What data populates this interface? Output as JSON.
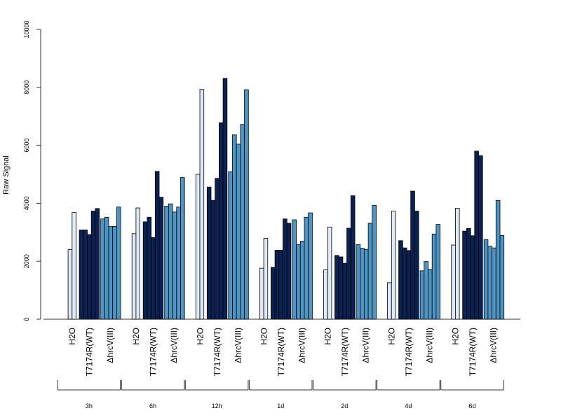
{
  "chart_data": {
    "type": "bar",
    "ylabel": "Raw Signal",
    "ylim": [
      0,
      10000
    ],
    "y_ticks": [
      "0",
      "2000",
      "4000",
      "6000",
      "8000",
      "10000"
    ],
    "group_labels": [
      "H2O",
      "T7174R(WT)",
      "ΔhrcV(III)"
    ],
    "colors": {
      "H2O": "#dfe9f5",
      "T7174R(WT)": "#0b2152",
      "ΔhrcV(III)": "#4e95c6",
      "axis": "#333333"
    },
    "categories": [
      "3h",
      "6h",
      "12h",
      "1d",
      "2d",
      "4d",
      "6d"
    ],
    "panels": [
      {
        "time": "3h",
        "groups": [
          [
            2400,
            3680
          ],
          [
            3080,
            3080,
            2920,
            3730,
            3820
          ],
          [
            3460,
            3520,
            3200,
            3200,
            3870
          ]
        ]
      },
      {
        "time": "6h",
        "groups": [
          [
            2950,
            3840
          ],
          [
            3360,
            3520,
            2820,
            5100,
            4210
          ],
          [
            3900,
            3980,
            3700,
            3870,
            4890
          ]
        ]
      },
      {
        "time": "12h",
        "groups": [
          [
            5000,
            7930
          ],
          [
            4560,
            4100,
            4860,
            6780,
            8310
          ],
          [
            5090,
            6360,
            6040,
            6720,
            7920
          ]
        ]
      },
      {
        "time": "1d",
        "groups": [
          [
            1760,
            2790
          ],
          [
            1790,
            2380,
            2380,
            3460,
            3310
          ],
          [
            3430,
            2580,
            2690,
            3520,
            3670
          ]
        ]
      },
      {
        "time": "2d",
        "groups": [
          [
            1710,
            3180
          ],
          [
            2200,
            2150,
            1930,
            3140,
            4260
          ],
          [
            2580,
            2450,
            2410,
            3310,
            3930
          ]
        ]
      },
      {
        "time": "4d",
        "groups": [
          [
            1260,
            3730
          ],
          [
            2710,
            2460,
            2370,
            4420,
            3730
          ],
          [
            1670,
            1990,
            1720,
            2940,
            3270
          ]
        ]
      },
      {
        "time": "6d",
        "groups": [
          [
            2560,
            3830
          ],
          [
            3040,
            3130,
            2880,
            5800,
            5640
          ],
          [
            2750,
            2520,
            2460,
            4100,
            2890
          ]
        ]
      }
    ]
  }
}
